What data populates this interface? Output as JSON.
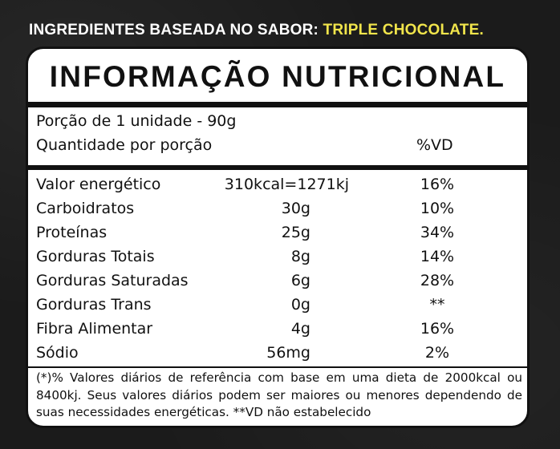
{
  "header": {
    "prefix": "INGREDIENTES BASEADA NO SABOR: ",
    "flavor": "TRIPLE CHOCOLATE."
  },
  "label": {
    "title": "INFORMAÇÃO NUTRICIONAL",
    "serving": "Porção de 1 unidade - 90g",
    "per_portion": "Quantidade por porção",
    "vd_header": "%VD",
    "rows": [
      {
        "name": "Valor energético",
        "amount": "310kcal=1271kj",
        "vd": "16%"
      },
      {
        "name": "Carboidratos",
        "amount": "30g",
        "vd": "10%"
      },
      {
        "name": "Proteínas",
        "amount": "25g",
        "vd": "34%"
      },
      {
        "name": "Gorduras Totais",
        "amount": "8g",
        "vd": "14%"
      },
      {
        "name": "Gorduras Saturadas",
        "amount": "6g",
        "vd": "28%"
      },
      {
        "name": "Gorduras Trans",
        "amount": "0g",
        "vd": "**"
      },
      {
        "name": "Fibra Alimentar",
        "amount": "4g",
        "vd": "16%"
      },
      {
        "name": "Sódio",
        "amount": "56mg",
        "vd": "2%"
      }
    ],
    "footnote": "(*)% Valores diários de referência com base em uma dieta de 2000kcal ou 8400kj. Seus valores diários podem ser maiores ou menores dependendo de suas necessidades energéticas. **VD não estabelecido"
  },
  "colors": {
    "background": "#1b1b1b",
    "flavor_accent": "#f1e54b",
    "panel": "#ffffff",
    "ink": "#111111"
  }
}
